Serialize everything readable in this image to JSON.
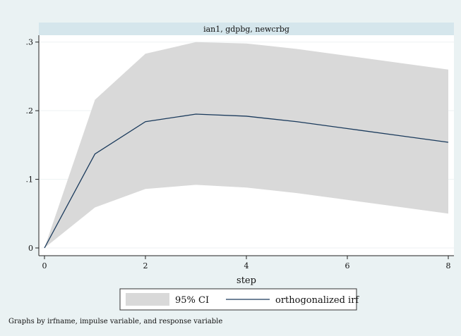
{
  "chart_data": {
    "type": "line",
    "panel_title": "ian1, gdpbg, newcrbg",
    "xlabel": "step",
    "x": [
      0,
      1,
      2,
      3,
      4,
      5,
      6,
      7,
      8
    ],
    "xticks": [
      0,
      2,
      4,
      6,
      8
    ],
    "xlim": [
      0,
      8
    ],
    "yticks": [
      0,
      0.1,
      0.2,
      0.3
    ],
    "ytick_labels": [
      "0",
      ".1",
      ".2",
      ".3"
    ],
    "ylim": [
      0,
      0.31
    ],
    "series": [
      {
        "name": "orthogonalized irf",
        "kind": "line",
        "color": "#1a3a5c",
        "values": [
          0.0,
          0.137,
          0.184,
          0.195,
          0.192,
          0.184,
          0.174,
          0.164,
          0.154
        ]
      },
      {
        "name": "95% CI",
        "kind": "band",
        "color": "#d9d9d9",
        "lower": [
          0.0,
          0.059,
          0.086,
          0.092,
          0.088,
          0.08,
          0.07,
          0.06,
          0.05
        ],
        "upper": [
          0.0,
          0.216,
          0.283,
          0.3,
          0.298,
          0.29,
          0.28,
          0.27,
          0.26
        ]
      }
    ],
    "legend": {
      "position": "bottom",
      "entries": [
        "95% CI",
        "orthogonalized irf"
      ]
    },
    "note": "Graphs by irfname, impulse variable, and response variable",
    "colors": {
      "outer_background": "#eaf2f3",
      "plot_background": "#ffffff",
      "title_strip": "#d5e6ec",
      "line": "#1a3a5c",
      "band": "#d9d9d9"
    }
  }
}
